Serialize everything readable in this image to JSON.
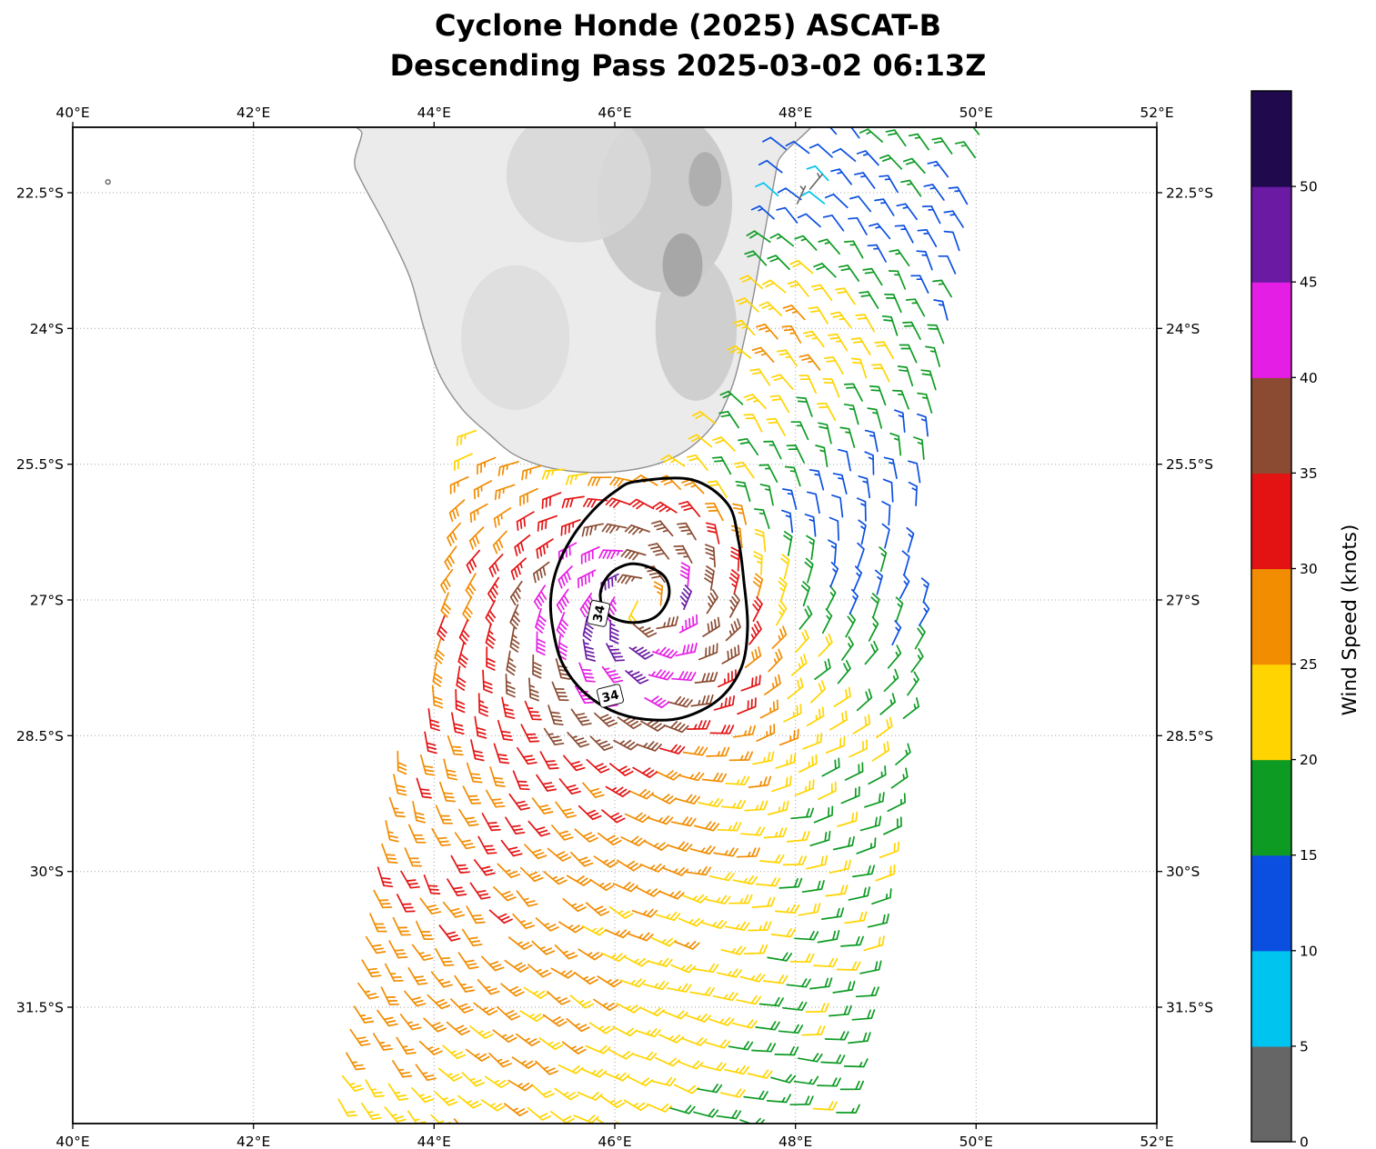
{
  "title": {
    "line1": "Cyclone Honde (2025) ASCAT-B",
    "line2": "Descending Pass 2025-03-02 06:13Z"
  },
  "chart_data": {
    "type": "windbarb-map",
    "storm": {
      "name": "Honde",
      "year": "2025",
      "instrument": "ASCAT-B",
      "pass": "Descending",
      "time": "2025-03-02 06:13Z"
    },
    "x_axis": {
      "ticks": [
        {
          "value": 40,
          "label": "40°E"
        },
        {
          "value": 42,
          "label": "42°E"
        },
        {
          "value": 44,
          "label": "44°E"
        },
        {
          "value": 46,
          "label": "46°E"
        },
        {
          "value": 48,
          "label": "48°E"
        },
        {
          "value": 50,
          "label": "50°E"
        },
        {
          "value": 52,
          "label": "52°E"
        }
      ]
    },
    "y_axis": {
      "ticks": [
        {
          "value": 22.5,
          "label": "22.5°S"
        },
        {
          "value": 24,
          "label": "24°S"
        },
        {
          "value": 25.5,
          "label": "25.5°S"
        },
        {
          "value": 27,
          "label": "27°S"
        },
        {
          "value": 28.5,
          "label": "28.5°S"
        },
        {
          "value": 30,
          "label": "30°S"
        },
        {
          "value": 31.5,
          "label": "31.5°S"
        }
      ]
    },
    "colorbar": {
      "label": "Wind Speed (knots)",
      "vmax": 55,
      "ticks": [
        0,
        5,
        10,
        15,
        20,
        25,
        30,
        35,
        40,
        45,
        50
      ],
      "segments": [
        {
          "from": 0,
          "to": 5,
          "color": "#666666"
        },
        {
          "from": 5,
          "to": 10,
          "color": "#00c4f0"
        },
        {
          "from": 10,
          "to": 15,
          "color": "#0b4fe0"
        },
        {
          "from": 15,
          "to": 20,
          "color": "#0d9b23"
        },
        {
          "from": 20,
          "to": 25,
          "color": "#ffd400"
        },
        {
          "from": 25,
          "to": 30,
          "color": "#f28c00"
        },
        {
          "from": 30,
          "to": 35,
          "color": "#e31313"
        },
        {
          "from": 35,
          "to": 40,
          "color": "#8a4b32"
        },
        {
          "from": 40,
          "to": 45,
          "color": "#e51ee5"
        },
        {
          "from": 45,
          "to": 50,
          "color": "#6b1ba3"
        },
        {
          "from": 50,
          "to": 55,
          "color": "#200a4d"
        }
      ]
    },
    "wind_field": {
      "center_lon": 46.35,
      "center_latS": 27.05,
      "max_wind_kt": 46,
      "rmw_deg": 0.42,
      "eye_floor_frac": 0.3,
      "p_inner": 0.2,
      "p_outer": 0.4,
      "p_transition_start": 0.9,
      "p_transition_len": 0.9,
      "asym_amp_kt": 7.5,
      "asym_dir": [
        -0.78,
        -0.63
      ],
      "asym_r_sat": 1.5,
      "inflow_deg": 22,
      "noise_kt": 2.2,
      "anomalies": [
        {
          "lon": 47.9,
          "latS": 24.0,
          "amp": 11,
          "sig": 0.75
        },
        {
          "lon": 48.4,
          "latS": 22.6,
          "amp": -4,
          "sig": 0.5
        },
        {
          "lon": 49.6,
          "latS": 21.7,
          "amp": 10,
          "sig": 0.8
        },
        {
          "lon": 49.3,
          "latS": 24.3,
          "amp": 6,
          "sig": 0.8
        },
        {
          "lon": 48.35,
          "latS": 26.3,
          "amp": -5,
          "sig": 0.55
        },
        {
          "lon": 43.8,
          "latS": 31.0,
          "amp": 4,
          "sig": 1.2
        }
      ]
    },
    "swath": {
      "spacing_deg": 0.26,
      "along_tilt": 0.17,
      "origin": {
        "lon": 42.3,
        "latS": 33.2
      },
      "cols": 26,
      "rows": 50,
      "west_edge": [
        [
          32.8,
          42.8
        ],
        [
          25.5,
          44.2
        ],
        [
          21.8,
          44.95
        ]
      ],
      "east_edge": [
        [
          32.8,
          48.55
        ],
        [
          21.8,
          50.2
        ]
      ],
      "lat_min": 21.84,
      "lat_max": 32.76
    },
    "contours": [
      {
        "level_kt": 34,
        "points": [
          [
            46.24,
            25.69
          ],
          [
            46.85,
            25.67
          ],
          [
            47.25,
            25.94
          ],
          [
            47.37,
            26.35
          ],
          [
            47.43,
            26.8
          ],
          [
            47.47,
            27.3
          ],
          [
            47.4,
            27.75
          ],
          [
            47.15,
            28.1
          ],
          [
            46.75,
            28.3
          ],
          [
            46.34,
            28.32
          ],
          [
            45.96,
            28.22
          ],
          [
            45.64,
            28.0
          ],
          [
            45.42,
            27.7
          ],
          [
            45.32,
            27.35
          ],
          [
            45.29,
            27.0
          ],
          [
            45.36,
            26.65
          ],
          [
            45.52,
            26.32
          ],
          [
            45.76,
            26.01
          ],
          [
            46.02,
            25.79
          ]
        ]
      },
      {
        "level_kt": 34,
        "points": [
          [
            46.22,
            26.6
          ],
          [
            46.53,
            26.72
          ],
          [
            46.6,
            26.95
          ],
          [
            46.46,
            27.18
          ],
          [
            46.19,
            27.25
          ],
          [
            45.92,
            27.16
          ],
          [
            45.84,
            26.93
          ],
          [
            45.96,
            26.7
          ]
        ]
      }
    ],
    "contour_labels": [
      {
        "text": "34",
        "lon": 45.82,
        "latS": 27.15,
        "rot": -78
      },
      {
        "text": "34",
        "lon": 45.95,
        "latS": 28.06,
        "rot": -14
      }
    ],
    "coastline": [
      [
        43.24,
        21.5
      ],
      [
        43.2,
        21.85
      ],
      [
        43.12,
        22.16
      ],
      [
        43.2,
        22.38
      ],
      [
        43.47,
        22.88
      ],
      [
        43.73,
        23.43
      ],
      [
        43.88,
        23.97
      ],
      [
        44.05,
        24.49
      ],
      [
        44.31,
        24.89
      ],
      [
        44.61,
        25.17
      ],
      [
        44.88,
        25.39
      ],
      [
        45.24,
        25.53
      ],
      [
        45.69,
        25.59
      ],
      [
        46.14,
        25.57
      ],
      [
        46.55,
        25.47
      ],
      [
        46.87,
        25.29
      ],
      [
        47.13,
        25.01
      ],
      [
        47.31,
        24.61
      ],
      [
        47.43,
        24.14
      ],
      [
        47.55,
        23.56
      ],
      [
        47.67,
        22.88
      ],
      [
        47.8,
        22.18
      ],
      [
        47.91,
        21.5
      ]
    ],
    "land": {
      "fill": "#ebebeb",
      "coast_stroke": "#8f8f8f",
      "relief": [
        {
          "lon": 46.55,
          "latS": 22.6,
          "rx": 0.75,
          "ry": 1.0,
          "color": "#c6c6c6",
          "opacity": 0.85
        },
        {
          "lon": 46.9,
          "latS": 24.0,
          "rx": 0.45,
          "ry": 0.8,
          "color": "#cccccc",
          "opacity": 0.9
        },
        {
          "lon": 45.6,
          "latS": 22.3,
          "rx": 0.8,
          "ry": 0.75,
          "color": "#d8d8d8",
          "opacity": 0.9
        },
        {
          "lon": 44.9,
          "latS": 24.1,
          "rx": 0.6,
          "ry": 0.8,
          "color": "#dedede",
          "opacity": 0.9
        },
        {
          "lon": 46.75,
          "latS": 23.3,
          "rx": 0.22,
          "ry": 0.35,
          "color": "#9d9d9d",
          "opacity": 0.8
        },
        {
          "lon": 47.0,
          "latS": 22.35,
          "rx": 0.18,
          "ry": 0.3,
          "color": "#a8a8a8",
          "opacity": 0.8
        }
      ]
    },
    "islet": {
      "lon": 40.39,
      "latS": 22.38
    },
    "stray_barbs": [
      {
        "lon": 48.02,
        "latS": 22.62,
        "kt": 3,
        "from_deg": 25
      },
      {
        "lon": 48.16,
        "latS": 22.46,
        "kt": 4,
        "from_deg": 40
      }
    ]
  }
}
